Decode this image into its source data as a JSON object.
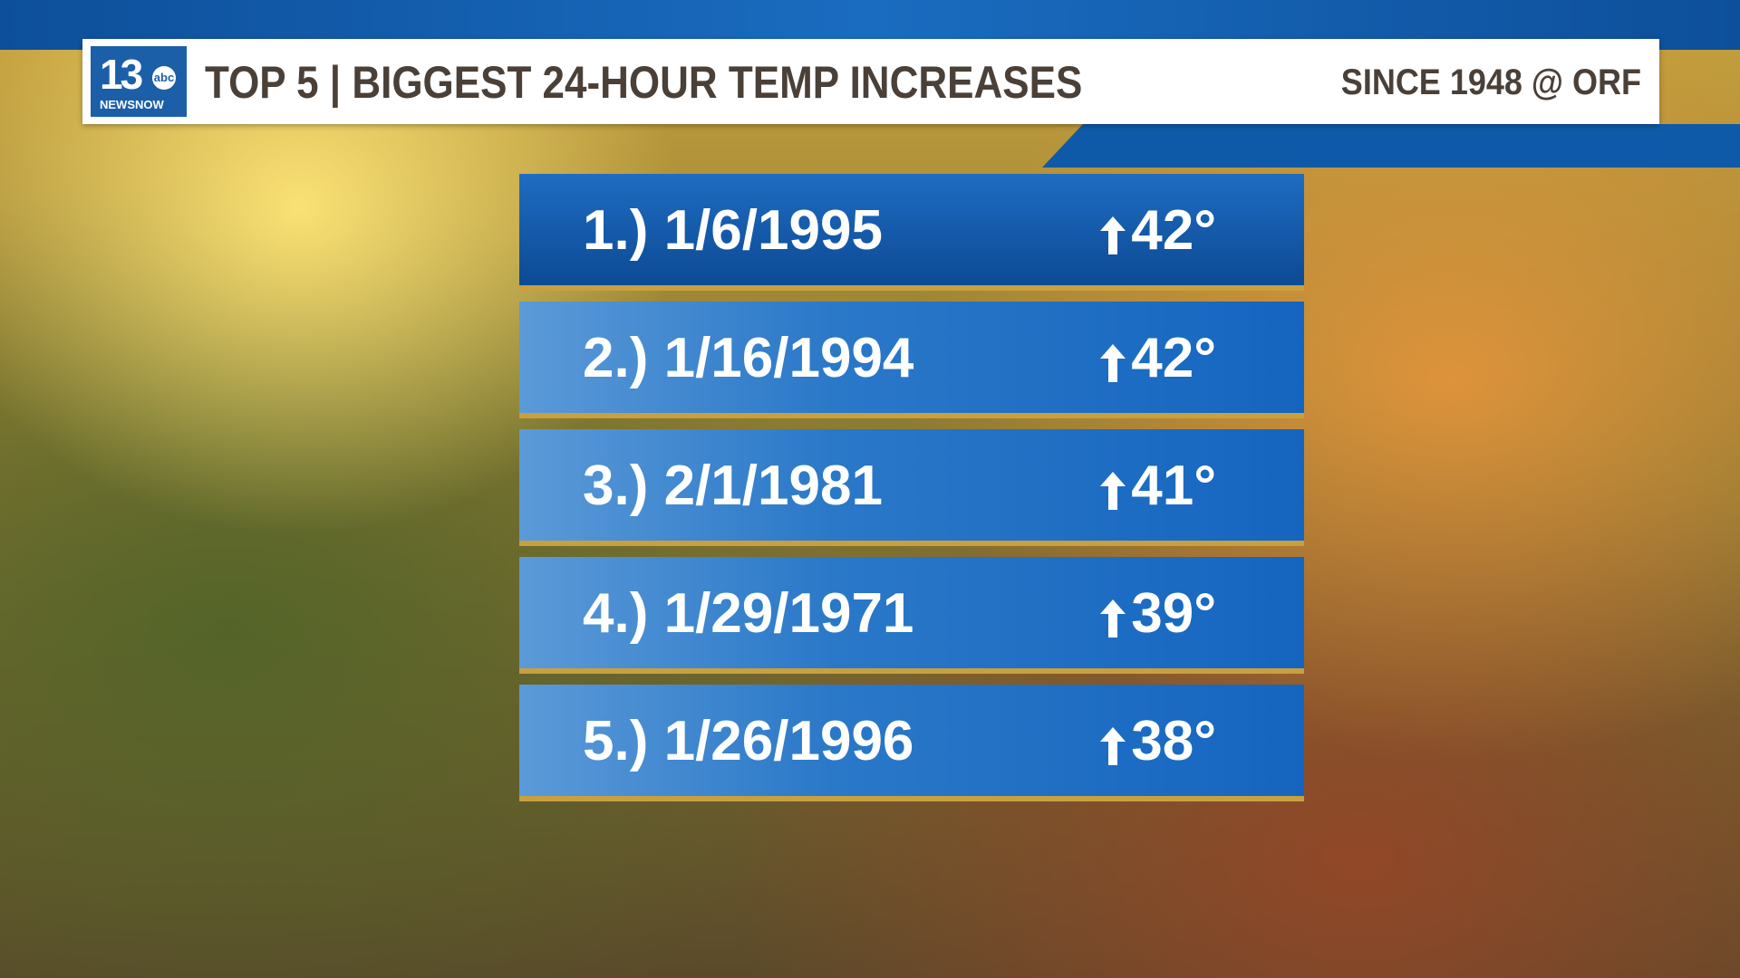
{
  "header": {
    "logo": {
      "number": "13",
      "network": "abc",
      "brand": "NEWSNOW"
    },
    "title": "TOP 5 | BIGGEST 24-HOUR TEMP INCREASES",
    "subtitle": "SINCE 1948 @ ORF"
  },
  "table": {
    "rows": [
      [
        "1.)",
        "1/6/1995",
        "42°"
      ],
      [
        "2.)",
        "1/16/1994",
        "42°"
      ],
      [
        "3.)",
        "2/1/1981",
        "41°"
      ],
      [
        "4.)",
        "1/29/1971",
        "39°"
      ],
      [
        "5.)",
        "1/26/1996",
        "38°"
      ]
    ]
  }
}
